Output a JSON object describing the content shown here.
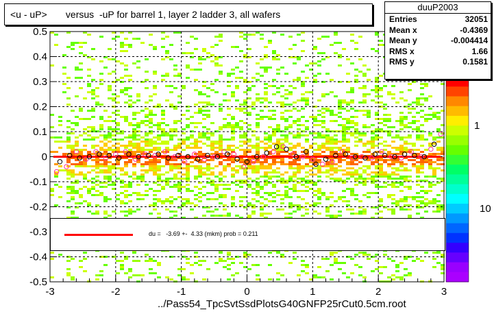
{
  "title": "<u - uP>       versus  -uP for barrel 1, layer 2 ladder 3, all wafers",
  "stats": {
    "name": "duuP2003",
    "rows": [
      {
        "label": "Entries",
        "value": "32051"
      },
      {
        "label": "Mean x",
        "value": "-0.4369"
      },
      {
        "label": "Mean y",
        "value": "-0.004414"
      },
      {
        "label": "RMS x",
        "value": "1.66"
      },
      {
        "label": "RMS y",
        "value": "0.1581"
      }
    ]
  },
  "footer": "../Pass54_TpcSvtSsdPlotsG40GNFP25rCut0.5cm.root",
  "fit_text": "du =   -3.69 +-  4.33 (mkm) prob = 0.211",
  "z_labels": [
    "1",
    "10"
  ],
  "chart_data": {
    "type": "heatmap",
    "title": "<u - uP>       versus  -uP for barrel 1, layer 2 ladder 3, all wafers",
    "xlim": [
      -3,
      3
    ],
    "ylim": [
      -0.5,
      0.5
    ],
    "x_ticks": [
      "-3",
      "-2",
      "-1",
      "0",
      "1",
      "2",
      "3"
    ],
    "y_ticks": [
      "-0.5",
      "-0.4",
      "-0.3",
      "-0.2",
      "-0.1",
      "0",
      "0.1",
      "0.2",
      "0.3",
      "0.4",
      "0.5"
    ],
    "grid": true,
    "z_scale": "log",
    "fit": {
      "du_mkm": -3.69,
      "error_mkm": 4.33,
      "prob": 0.211,
      "color": "#ff0000"
    },
    "profile_black": {
      "x": [
        -2.85,
        -2.7,
        -2.55,
        -2.4,
        -2.25,
        -2.1,
        -1.95,
        -1.8,
        -1.65,
        -1.5,
        -1.35,
        -1.2,
        -1.05,
        -0.9,
        -0.75,
        -0.6,
        -0.45,
        -0.3,
        -0.15,
        0.0,
        0.15,
        0.3,
        0.45,
        0.6,
        0.75,
        0.9,
        1.05,
        1.2,
        1.35,
        1.5,
        1.65,
        1.8,
        1.95,
        2.1,
        2.25,
        2.4,
        2.55,
        2.7,
        2.85
      ],
      "y": [
        -0.02,
        0.005,
        -0.005,
        0.0,
        0.01,
        0.005,
        -0.005,
        0.01,
        0.0,
        0.005,
        0.01,
        -0.005,
        0.005,
        0.0,
        -0.01,
        0.005,
        0.0,
        0.01,
        -0.01,
        -0.02,
        0.0,
        0.015,
        0.04,
        0.03,
        0.0,
        0.02,
        -0.03,
        -0.01,
        0.005,
        0.01,
        0.0,
        -0.005,
        0.01,
        0.005,
        0.0,
        0.01,
        0.005,
        0.0,
        0.05
      ]
    },
    "profile_pink": {
      "x": [
        -2.9,
        -2.75,
        -2.6,
        -2.45,
        -2.3,
        -2.15,
        -2.0,
        -1.85,
        -1.7,
        -1.55,
        -1.4,
        -1.25,
        -1.1,
        -0.95,
        -0.8,
        -0.65,
        -0.5,
        -0.35,
        -0.2,
        -0.05,
        0.1,
        0.25,
        0.4,
        0.55,
        0.7,
        0.85,
        1.0,
        1.15,
        1.3,
        1.45,
        1.6,
        1.75,
        1.9,
        2.05,
        2.2,
        2.35,
        2.5,
        2.65,
        2.8,
        2.95
      ],
      "y": [
        -0.06,
        -0.04,
        0.02,
        -0.01,
        0.02,
        -0.005,
        0.01,
        0.02,
        -0.01,
        0.01,
        0.005,
        0.02,
        0.0,
        -0.02,
        0.01,
        -0.01,
        0.0,
        0.02,
        0.01,
        -0.04,
        -0.02,
        0.0,
        0.02,
        0.04,
        0.01,
        0.0,
        -0.01,
        -0.03,
        -0.02,
        0.02,
        -0.005,
        0.0,
        -0.005,
        0.02,
        0.0,
        -0.005,
        0.02,
        0.0,
        0.03,
        0.09
      ]
    }
  }
}
